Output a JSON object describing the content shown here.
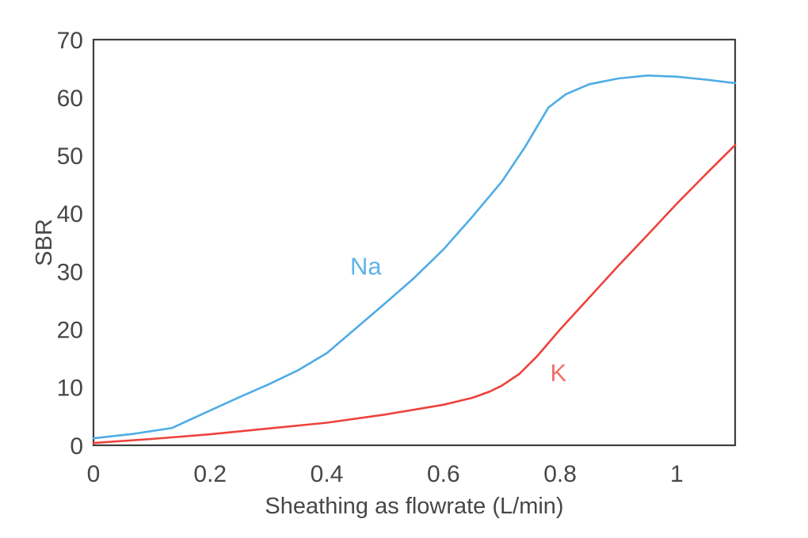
{
  "figure": {
    "background": "#ffffff",
    "border_color": "#3e3e3e",
    "text_color": "#474747"
  },
  "chart_data": {
    "type": "line",
    "title": "",
    "xlabel": "Sheathing as flowrate (L/min)",
    "ylabel": "SBR",
    "xlim": [
      0,
      1.1
    ],
    "ylim": [
      0,
      70
    ],
    "grid": false,
    "legend_position": "inline-annotations",
    "x_ticks": {
      "values": [
        0,
        0.2,
        0.4,
        0.6,
        0.8,
        1
      ],
      "labels": [
        "0",
        "0.2",
        "0.4",
        "0.6",
        "0.8",
        "1"
      ]
    },
    "y_ticks": {
      "values": [
        0,
        10,
        20,
        30,
        40,
        50,
        60,
        70
      ],
      "labels": [
        "0",
        "10",
        "20",
        "30",
        "40",
        "50",
        "60",
        "70"
      ]
    },
    "series": [
      {
        "name": "Na",
        "color": "#4eace6",
        "x": [
          0,
          0.07,
          0.135,
          0.165,
          0.2,
          0.25,
          0.3,
          0.35,
          0.4,
          0.45,
          0.5,
          0.55,
          0.6,
          0.65,
          0.7,
          0.74,
          0.78,
          0.81,
          0.85,
          0.9,
          0.95,
          1.0,
          1.05,
          1.1
        ],
        "y": [
          1.2,
          2.0,
          3.0,
          4.4,
          6.0,
          8.3,
          10.5,
          12.9,
          15.9,
          20.2,
          24.5,
          28.9,
          33.8,
          39.5,
          45.5,
          51.5,
          58.3,
          60.6,
          62.3,
          63.3,
          63.8,
          63.6,
          63.1,
          62.5
        ]
      },
      {
        "name": "K",
        "color": "#ee423c",
        "x": [
          0,
          0.1,
          0.2,
          0.3,
          0.4,
          0.5,
          0.6,
          0.65,
          0.68,
          0.7,
          0.73,
          0.76,
          0.8,
          0.85,
          0.9,
          0.95,
          1.0,
          1.05,
          1.1
        ],
        "y": [
          0.4,
          1.1,
          1.9,
          2.9,
          3.9,
          5.3,
          7.0,
          8.2,
          9.3,
          10.3,
          12.3,
          15.3,
          20.0,
          25.5,
          31.0,
          36.3,
          41.7,
          46.8,
          51.8
        ]
      }
    ],
    "annotations": [
      {
        "text": "Na",
        "x": 0.467,
        "y": 31.0,
        "color": "#5fb3ea"
      },
      {
        "text": "K",
        "x": 0.797,
        "y": 12.6,
        "color": "#f0706b"
      }
    ]
  }
}
